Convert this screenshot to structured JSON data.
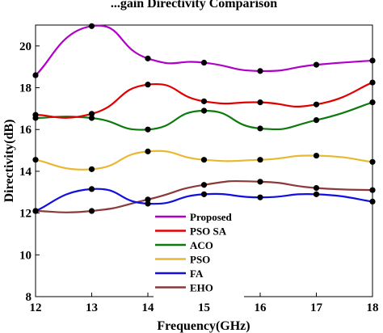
{
  "chart_data": {
    "type": "line",
    "title": "...gain Directivity Comparison",
    "xlabel": "Frequency(GHz)",
    "ylabel": "Directivity(dB)",
    "xlim": [
      12,
      18
    ],
    "ylim": [
      8,
      21
    ],
    "x_ticks": [
      12,
      13,
      14,
      15,
      16,
      17,
      18
    ],
    "y_ticks": [
      8,
      10,
      12,
      14,
      16,
      18,
      20
    ],
    "grid": false,
    "legend_position": "lower-center",
    "series": [
      {
        "name": "Proposed",
        "color": "#b000c8",
        "x": [
          12,
          13,
          14,
          15,
          16,
          17,
          18
        ],
        "y": [
          18.6,
          20.95,
          19.4,
          19.2,
          18.8,
          19.1,
          19.3
        ]
      },
      {
        "name": "PSO SA",
        "color": "#e00000",
        "x": [
          12,
          13,
          14,
          15,
          16,
          17,
          18
        ],
        "y": [
          16.7,
          16.75,
          18.15,
          17.35,
          17.3,
          17.2,
          18.25
        ]
      },
      {
        "name": "ACO",
        "color": "#0c7a0c",
        "x": [
          12,
          13,
          14,
          15,
          16,
          17,
          18
        ],
        "y": [
          16.55,
          16.55,
          16.0,
          16.9,
          16.05,
          16.45,
          17.3
        ]
      },
      {
        "name": "PSO",
        "color": "#e8b830",
        "x": [
          12,
          13,
          14,
          15,
          16,
          17,
          18
        ],
        "y": [
          14.55,
          14.1,
          14.95,
          14.55,
          14.55,
          14.75,
          14.45
        ]
      },
      {
        "name": "FA",
        "color": "#1010e0",
        "x": [
          12,
          13,
          14,
          15,
          16,
          17,
          18
        ],
        "y": [
          12.1,
          13.15,
          12.45,
          12.9,
          12.75,
          12.9,
          12.55
        ]
      },
      {
        "name": "EHO",
        "color": "#8b3a3a",
        "x": [
          12,
          13,
          14,
          15,
          16,
          17,
          18
        ],
        "y": [
          12.1,
          12.1,
          12.65,
          13.35,
          13.5,
          13.2,
          13.1
        ]
      }
    ]
  }
}
